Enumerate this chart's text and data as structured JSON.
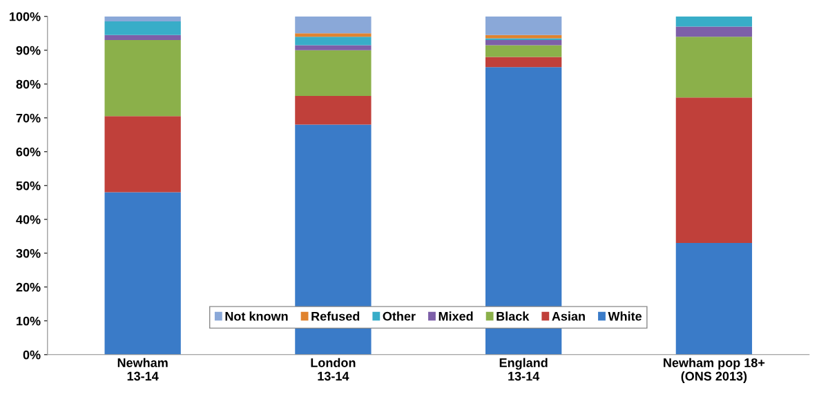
{
  "chart_data": {
    "type": "bar",
    "stacked": true,
    "categories": [
      "Newham\n13-14",
      "London\n13-14",
      "England\n13-14",
      "Newham pop 18+\n(ONS 2013)"
    ],
    "series": [
      {
        "name": "White",
        "color": "#3a7bc8",
        "values": [
          48,
          68,
          85,
          33
        ]
      },
      {
        "name": "Asian",
        "color": "#c0403a",
        "values": [
          22.5,
          8.5,
          3,
          43
        ]
      },
      {
        "name": "Black",
        "color": "#8bb04a",
        "values": [
          22.5,
          13.5,
          3.5,
          18
        ]
      },
      {
        "name": "Mixed",
        "color": "#7d5fa8",
        "values": [
          1.5,
          1.5,
          1.5,
          3
        ]
      },
      {
        "name": "Other",
        "color": "#38adc8",
        "values": [
          4,
          2.5,
          0.5,
          3
        ]
      },
      {
        "name": "Refused",
        "color": "#e0832f",
        "values": [
          0,
          1,
          1,
          0
        ]
      },
      {
        "name": "Not known",
        "color": "#8aa8d8",
        "values": [
          1.5,
          5,
          5.5,
          0
        ]
      }
    ],
    "ylim": [
      0,
      100
    ],
    "yticks": [
      {
        "value": 0,
        "label": "0%"
      },
      {
        "value": 10,
        "label": "10%"
      },
      {
        "value": 20,
        "label": "20%"
      },
      {
        "value": 30,
        "label": "30%"
      },
      {
        "value": 40,
        "label": "40%"
      },
      {
        "value": 50,
        "label": "50%"
      },
      {
        "value": 60,
        "label": "60%"
      },
      {
        "value": 70,
        "label": "70%"
      },
      {
        "value": 80,
        "label": "80%"
      },
      {
        "value": 90,
        "label": "90%"
      },
      {
        "value": 100,
        "label": "100%"
      }
    ],
    "grid": false,
    "legend": "bottom"
  }
}
